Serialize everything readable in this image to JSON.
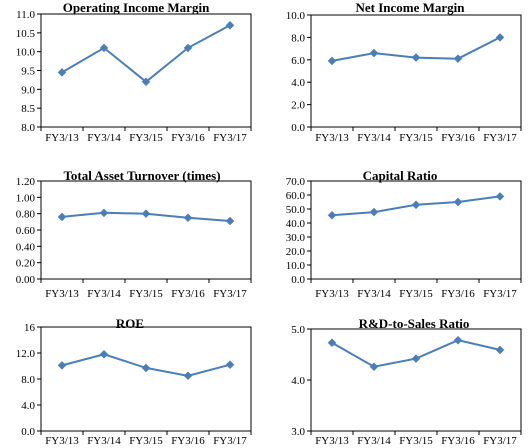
{
  "colors": {
    "line": "#4a7ebb",
    "axis": "#000000",
    "frame": "#000000",
    "background": "#ffffff"
  },
  "chart_data": [
    {
      "type": "line",
      "title": "Operating Income Margin",
      "categories": [
        "FY3/13",
        "FY3/14",
        "FY3/15",
        "FY3/16",
        "FY3/17"
      ],
      "values": [
        9.45,
        10.1,
        9.2,
        10.1,
        10.7
      ],
      "ylim": [
        8.0,
        11.0
      ],
      "yticks": [
        "8.0",
        "8.5",
        "9.0",
        "9.5",
        "10.0",
        "10.5",
        "11.0"
      ],
      "grid": false,
      "legend": "none"
    },
    {
      "type": "line",
      "title": "Net Income Margin",
      "categories": [
        "FY3/13",
        "FY3/14",
        "FY3/15",
        "FY3/16",
        "FY3/17"
      ],
      "values": [
        5.9,
        6.6,
        6.2,
        6.1,
        8.0
      ],
      "ylim": [
        0.0,
        10.0
      ],
      "yticks": [
        "0.0",
        "2.0",
        "4.0",
        "6.0",
        "8.0",
        "10.0"
      ],
      "grid": false,
      "legend": "none"
    },
    {
      "type": "line",
      "title": "Total Asset Turnover (times)",
      "categories": [
        "FY3/13",
        "FY3/14",
        "FY3/15",
        "FY3/16",
        "FY3/17"
      ],
      "values": [
        0.76,
        0.81,
        0.8,
        0.75,
        0.71
      ],
      "ylim": [
        0.0,
        1.2
      ],
      "yticks": [
        "0.00",
        "0.20",
        "0.40",
        "0.60",
        "0.80",
        "1.00",
        "1.20"
      ],
      "grid": false,
      "legend": "none"
    },
    {
      "type": "line",
      "title": "Capital  Ratio",
      "categories": [
        "FY3/13",
        "FY3/14",
        "FY3/15",
        "FY3/16",
        "FY3/17"
      ],
      "values": [
        45.5,
        47.8,
        53.0,
        55.0,
        59.0
      ],
      "ylim": [
        0.0,
        70.0
      ],
      "yticks": [
        "0.0",
        "10.0",
        "20.0",
        "30.0",
        "40.0",
        "50.0",
        "60.0",
        "70.0"
      ],
      "grid": false,
      "legend": "none"
    },
    {
      "type": "line",
      "title": "ROE",
      "categories": [
        "FY3/13",
        "FY3/14",
        "FY3/15",
        "FY3/16",
        "FY3/17"
      ],
      "values": [
        10.1,
        11.8,
        9.7,
        8.5,
        10.2
      ],
      "ylim": [
        0.0,
        16.0
      ],
      "yticks": [
        "0.0",
        "4.0",
        "8.0",
        "12.0",
        "16"
      ],
      "grid": false,
      "legend": "none"
    },
    {
      "type": "line",
      "title": "R&D-to-Sales Ratio",
      "categories": [
        "FY3/13",
        "FY3/14",
        "FY3/15",
        "FY3/16",
        "FY3/17"
      ],
      "values": [
        4.73,
        4.26,
        4.42,
        4.78,
        4.59
      ],
      "ylim": [
        3.0,
        5.0
      ],
      "yticks": [
        "3.0",
        "4.0",
        "5.0"
      ],
      "grid": false,
      "legend": "none"
    }
  ]
}
